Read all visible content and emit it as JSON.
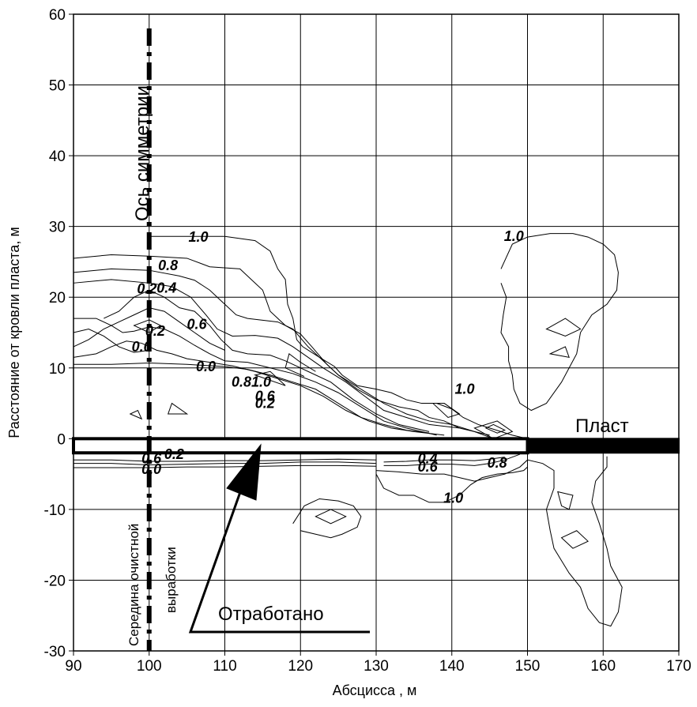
{
  "chart_data": {
    "type": "contour",
    "xlabel": "Абсцисса , м",
    "ylabel": "Расстояние от кровли пласта, м",
    "xlim": [
      90,
      170
    ],
    "ylim": [
      -30,
      60
    ],
    "xticks": [
      90,
      100,
      110,
      120,
      130,
      140,
      150,
      160,
      170
    ],
    "yticks": [
      -30,
      -20,
      -10,
      0,
      10,
      20,
      30,
      40,
      50,
      60
    ],
    "grid": true,
    "symmetry_axis_x": 100,
    "seam": {
      "label": "Пласт",
      "y_top": 0,
      "y_bottom": -2,
      "mined": {
        "x_start": 90,
        "x_end": 150,
        "label": "Отработано"
      },
      "intact": {
        "x_start": 150,
        "x_end": 170
      }
    },
    "annotations": {
      "symmetry_axis": "Ось симметрии",
      "working_middle_line1": "Середина очистной",
      "working_middle_line2": "выработки"
    },
    "contour_labels": [
      {
        "text": "1.0",
        "x": 106.5,
        "y": 28.5
      },
      {
        "text": "0.8",
        "x": 102.5,
        "y": 24.5
      },
      {
        "text": "0.2",
        "x": 99.7,
        "y": 21.2
      },
      {
        "text": "0.4",
        "x": 102.3,
        "y": 21.3
      },
      {
        "text": "0.2",
        "x": 100.8,
        "y": 15.2
      },
      {
        "text": "0.6",
        "x": 106.3,
        "y": 16.2
      },
      {
        "text": "0.0",
        "x": 99.0,
        "y": 13.0
      },
      {
        "text": "0.0",
        "x": 107.5,
        "y": 10.2
      },
      {
        "text": "0.81.0",
        "x": 113.5,
        "y": 8.0
      },
      {
        "text": "0.6",
        "x": 115.3,
        "y": 6.0
      },
      {
        "text": "0.2",
        "x": 115.3,
        "y": 5.0
      },
      {
        "text": "1.0",
        "x": 148.2,
        "y": 28.6
      },
      {
        "text": "1.0",
        "x": 141.7,
        "y": 7.0
      },
      {
        "text": "0.6",
        "x": 100.3,
        "y": -2.8
      },
      {
        "text": "0.0",
        "x": 100.3,
        "y": -4.3
      },
      {
        "text": "0.2",
        "x": 103.3,
        "y": -2.2
      },
      {
        "text": "0.4",
        "x": 136.8,
        "y": -2.8
      },
      {
        "text": "0.6",
        "x": 136.8,
        "y": -4.0
      },
      {
        "text": "0.8",
        "x": 146.0,
        "y": -3.4
      },
      {
        "text": "1.0",
        "x": 140.2,
        "y": -8.4
      }
    ]
  }
}
